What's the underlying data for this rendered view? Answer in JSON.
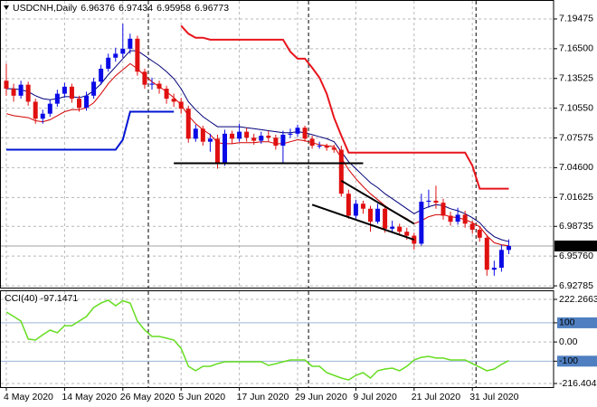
{
  "chart_data": [
    {
      "type": "candlestick",
      "title": "USDCNH,Daily",
      "categories": [
        "4 May 2020",
        null,
        null,
        null,
        null,
        null,
        null,
        null,
        "14 May 2020",
        null,
        null,
        null,
        null,
        null,
        null,
        null,
        "26 May 2020",
        null,
        null,
        null,
        null,
        null,
        null,
        null,
        "5 Jun 2020",
        null,
        null,
        null,
        null,
        null,
        null,
        null,
        "17 Jun 2020",
        null,
        null,
        null,
        null,
        null,
        null,
        null,
        "29 Jun 2020",
        null,
        null,
        null,
        null,
        null,
        null,
        null,
        "9 Jul 2020",
        null,
        null,
        null,
        null,
        null,
        null,
        null,
        "21 Jul 2020",
        null,
        null,
        null,
        null,
        null,
        null,
        null,
        "31 Jul 2020",
        null,
        null,
        null,
        null,
        null
      ],
      "open": [
        7.133,
        7.125,
        7.118,
        7.129,
        7.112,
        7.095,
        7.1,
        7.11,
        7.12,
        7.127,
        7.115,
        7.106,
        7.118,
        7.132,
        7.145,
        7.156,
        7.16,
        7.165,
        7.175,
        7.142,
        7.129,
        7.13,
        7.125,
        7.115,
        7.112,
        7.105,
        7.075,
        7.085,
        7.072,
        7.075,
        7.05,
        7.08,
        7.075,
        7.082,
        7.076,
        7.073,
        7.078,
        7.076,
        7.068,
        7.079,
        7.08,
        7.086,
        7.075,
        7.068,
        7.068,
        7.066,
        7.064,
        7.02,
        6.998,
        7.01,
        7.005,
        6.992,
        7.005,
        6.985,
        6.987,
        6.982,
        6.978,
        6.97,
        7.012,
        7.013,
        7.011,
        6.998,
        6.992,
        6.999,
        6.99,
        6.984,
        6.976,
        6.944,
        6.946,
        6.96376
      ],
      "high": [
        7.15,
        7.13,
        7.133,
        7.132,
        7.115,
        7.104,
        7.114,
        7.124,
        7.131,
        7.13,
        7.118,
        7.122,
        7.136,
        7.149,
        7.16,
        7.166,
        7.19,
        7.18,
        7.178,
        7.145,
        7.136,
        7.133,
        7.128,
        7.12,
        7.116,
        7.108,
        7.089,
        7.088,
        7.08,
        7.079,
        7.084,
        7.083,
        7.09,
        7.086,
        7.08,
        7.082,
        7.083,
        7.079,
        7.083,
        7.085,
        7.089,
        7.088,
        7.078,
        7.072,
        7.07,
        7.069,
        7.068,
        7.024,
        7.014,
        7.013,
        7.008,
        7.01,
        7.008,
        6.993,
        6.99,
        6.986,
        6.981,
        7.02,
        7.024,
        7.028,
        7.015,
        7.002,
        7.006,
        7.003,
        6.993,
        6.987,
        6.979,
        6.953,
        6.969,
        6.97434
      ],
      "low": [
        7.118,
        7.112,
        7.115,
        7.108,
        7.09,
        7.09,
        7.097,
        7.107,
        7.116,
        7.111,
        7.102,
        7.103,
        7.115,
        7.129,
        7.142,
        7.152,
        7.156,
        7.16,
        7.138,
        7.125,
        7.124,
        7.12,
        7.11,
        7.107,
        7.1,
        7.071,
        7.072,
        7.068,
        7.062,
        7.045,
        7.048,
        7.07,
        7.072,
        7.072,
        7.069,
        7.07,
        7.072,
        7.064,
        7.05,
        7.076,
        7.077,
        7.072,
        7.065,
        7.065,
        7.063,
        7.061,
        7.017,
        6.995,
        6.994,
        7.0,
        6.982,
        6.99,
        6.981,
        6.981,
        6.978,
        6.974,
        6.964,
        6.968,
        7.006,
        7.005,
        6.994,
        6.988,
        6.989,
        6.986,
        6.98,
        6.972,
        6.938,
        6.938,
        6.942,
        6.95958
      ],
      "close": [
        7.125,
        7.118,
        7.129,
        7.112,
        7.095,
        7.1,
        7.11,
        7.12,
        7.127,
        7.115,
        7.106,
        7.118,
        7.132,
        7.145,
        7.156,
        7.16,
        7.165,
        7.175,
        7.142,
        7.129,
        7.13,
        7.125,
        7.115,
        7.112,
        7.105,
        7.075,
        7.085,
        7.072,
        7.075,
        7.05,
        7.08,
        7.075,
        7.082,
        7.076,
        7.073,
        7.078,
        7.076,
        7.068,
        7.079,
        7.08,
        7.086,
        7.075,
        7.068,
        7.068,
        7.066,
        7.064,
        7.02,
        6.998,
        7.01,
        7.005,
        6.992,
        7.005,
        6.985,
        6.987,
        6.982,
        6.978,
        6.97,
        7.012,
        7.013,
        7.011,
        6.998,
        6.992,
        6.999,
        6.99,
        6.984,
        6.976,
        6.944,
        6.946,
        6.9638,
        6.96773
      ],
      "up_color": "#0a0ae6",
      "down_color": "#e01010",
      "ylim": [
        6.9261,
        7.2128
      ],
      "yticks": [
        7.19475,
        {
          "value": 7.165,
          "label": "7.16500"
        },
        7.13525,
        {
          "value": 7.1055,
          "label": "7.10550"
        },
        7.07575,
        {
          "value": 7.046,
          "label": "7.04600"
        },
        7.01625,
        6.98735,
        {
          "value": 6.9576,
          "label": "6.95760"
        },
        6.92785
      ],
      "grid": true,
      "period_separators": [
        20,
        42,
        65
      ],
      "overlays": [
        {
          "color": "#00007a",
          "width": 1,
          "values": [
            7.125,
            7.125,
            7.124,
            7.122,
            7.118,
            7.115,
            7.114,
            7.115,
            7.117,
            7.117,
            7.116,
            7.118,
            7.123,
            7.13,
            7.139,
            7.147,
            7.155,
            7.163,
            7.163,
            7.158,
            7.153,
            7.148,
            7.142,
            7.135,
            7.125,
            7.112,
            7.104,
            7.097,
            7.092,
            7.087,
            7.087,
            7.087,
            7.087,
            7.086,
            7.085,
            7.084,
            7.083,
            7.082,
            7.081,
            7.081,
            7.082,
            7.081,
            7.079,
            7.077,
            7.075,
            7.072,
            7.062,
            7.052,
            7.045,
            7.038,
            7.031,
            7.026,
            7.02,
            7.015,
            7.01,
            7.005,
            7.0,
            7.004,
            7.007,
            7.009,
            7.008,
            7.005,
            7.003,
            7.0,
            6.996,
            6.991,
            6.983,
            6.977,
            6.974,
            6.972
          ]
        },
        {
          "color": "#d40000",
          "width": 1,
          "values": [
            7.1,
            7.098,
            7.097,
            7.096,
            7.093,
            7.092,
            7.094,
            7.098,
            7.102,
            7.104,
            7.104,
            7.106,
            7.111,
            7.12,
            7.13,
            7.138,
            7.144,
            7.15,
            7.145,
            7.138,
            7.132,
            7.127,
            7.122,
            7.116,
            7.109,
            7.098,
            7.09,
            7.084,
            7.079,
            7.071,
            7.07,
            7.07,
            7.071,
            7.071,
            7.071,
            7.072,
            7.072,
            7.07,
            7.07,
            7.072,
            7.074,
            7.073,
            7.071,
            7.069,
            7.068,
            7.067,
            7.056,
            7.044,
            7.035,
            7.027,
            7.02,
            7.014,
            7.008,
            7.003,
            6.999,
            6.995,
            6.99,
            6.993,
            6.997,
            6.999,
            6.999,
            6.997,
            6.996,
            6.994,
            6.991,
            6.987,
            6.978,
            6.971,
            6.969,
            6.968
          ]
        },
        {
          "color": "#e8141c",
          "width": 2,
          "values": [
            null,
            null,
            null,
            null,
            null,
            null,
            null,
            null,
            null,
            null,
            null,
            null,
            null,
            null,
            null,
            null,
            null,
            null,
            null,
            null,
            null,
            null,
            null,
            null,
            7.188,
            7.18,
            7.176,
            7.176,
            7.174,
            7.174,
            7.174,
            7.174,
            7.174,
            7.174,
            7.174,
            7.174,
            7.174,
            7.174,
            7.174,
            7.162,
            7.155,
            7.155,
            7.146,
            7.136,
            7.12,
            7.096,
            7.078,
            7.061,
            7.061,
            7.061,
            7.061,
            7.061,
            7.061,
            7.061,
            7.061,
            7.061,
            7.061,
            7.061,
            7.061,
            7.061,
            7.061,
            7.061,
            7.061,
            7.061,
            7.048,
            7.025,
            7.025,
            7.025,
            7.025,
            7.025
          ]
        },
        {
          "color": "#0014d2",
          "width": 2,
          "values": [
            7.064,
            7.064,
            7.064,
            7.064,
            7.064,
            7.064,
            7.064,
            7.064,
            7.064,
            7.064,
            7.064,
            7.064,
            7.064,
            7.064,
            7.064,
            7.064,
            7.074,
            7.102,
            7.102,
            7.102,
            7.102,
            7.102,
            7.102,
            7.102,
            null,
            null,
            null,
            null,
            null,
            null,
            null,
            null,
            null,
            null,
            null,
            null,
            null,
            null,
            null,
            null,
            null,
            null,
            null,
            null,
            null,
            null,
            null,
            null,
            null,
            null,
            null,
            null,
            null,
            null,
            null,
            null,
            null,
            null,
            null,
            null,
            null,
            null,
            null,
            null,
            null,
            null,
            null,
            null,
            null,
            null
          ]
        }
      ],
      "trendlines": [
        {
          "start": [
            23,
            7.0505
          ],
          "end": [
            49,
            7.0505
          ],
          "color": "#000000"
        },
        {
          "start": [
            42,
            7.009
          ],
          "end": [
            56,
            6.974
          ],
          "color": "#000000"
        },
        {
          "start": [
            46,
            7.033
          ],
          "end": [
            56,
            6.99
          ],
          "color": "#000000"
        }
      ]
    },
    {
      "type": "line",
      "title": "CCI(40)",
      "values": [
        156,
        133,
        109,
        15,
        10,
        38,
        62,
        48,
        85,
        85,
        109,
        133,
        180,
        203,
        218,
        189,
        215,
        203,
        109,
        62,
        29,
        29,
        20,
        10,
        -33,
        -127,
        -150,
        -127,
        -127,
        -113,
        -103,
        -103,
        -103,
        -103,
        -103,
        -103,
        -122,
        -113,
        -103,
        -94,
        -94,
        -94,
        -127,
        -127,
        -160,
        -174,
        -188,
        -198,
        -174,
        -160,
        -188,
        -150,
        -141,
        -136,
        -150,
        -127,
        -94,
        -80,
        -75,
        -84,
        -84,
        -94,
        -94,
        -94,
        -113,
        -131,
        -150,
        -141,
        -117,
        -97.1471
      ],
      "color": "#66dd22",
      "ylim": [
        -216.404,
        222.2663
      ],
      "yticks": [
        222.2663,
        100,
        {
          "value": 0,
          "label": "0.00"
        },
        -100,
        -216.404
      ],
      "levels": [
        100,
        -100
      ],
      "grid": true
    }
  ]
}
